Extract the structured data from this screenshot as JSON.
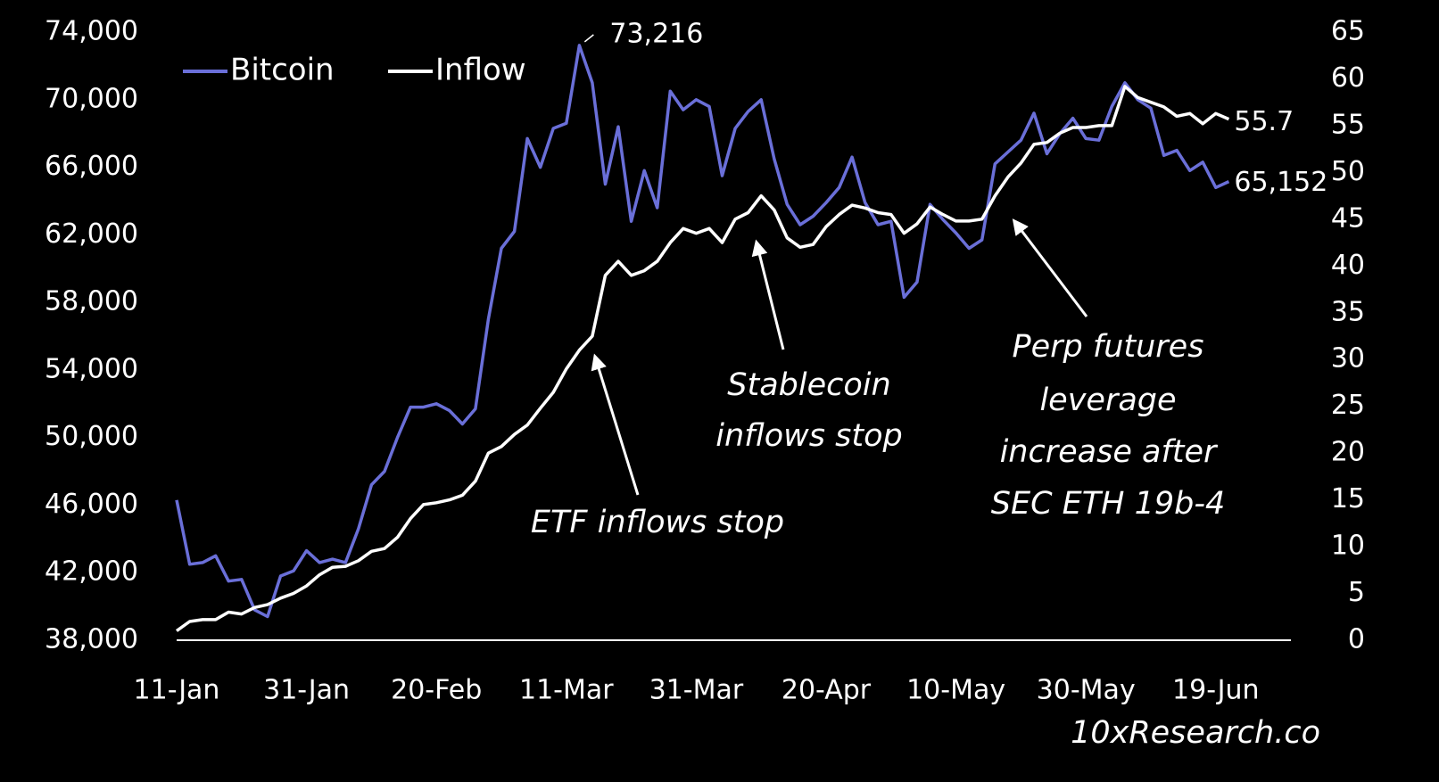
{
  "chart_data": {
    "type": "line",
    "categories": [
      "11-Jan",
      null,
      null,
      null,
      null,
      null,
      null,
      null,
      null,
      null,
      "31-Jan",
      null,
      null,
      null,
      null,
      null,
      null,
      null,
      null,
      null,
      "20-Feb",
      null,
      null,
      null,
      null,
      null,
      null,
      null,
      null,
      null,
      "11-Mar",
      null,
      null,
      null,
      null,
      null,
      null,
      null,
      null,
      null,
      "31-Mar",
      null,
      null,
      null,
      null,
      null,
      null,
      null,
      null,
      null,
      "20-Apr",
      null,
      null,
      null,
      null,
      null,
      null,
      null,
      null,
      null,
      "10-May",
      null,
      null,
      null,
      null,
      null,
      null,
      null,
      null,
      null,
      "30-May",
      null,
      null,
      null,
      null,
      null,
      null,
      null,
      null,
      null,
      "19-Jun",
      null
    ],
    "series": [
      {
        "name": "Bitcoin",
        "color": "#6a6fd8",
        "values": [
          46300,
          42500,
          42600,
          43000,
          41500,
          41600,
          39800,
          39400,
          41800,
          42100,
          43300,
          42600,
          42800,
          42600,
          44600,
          47200,
          48000,
          50000,
          51800,
          51800,
          52000,
          51600,
          50800,
          51700,
          57000,
          61200,
          62200,
          67700,
          66000,
          68300,
          68600,
          73216,
          71000,
          65000,
          68400,
          62800,
          65800,
          63600,
          70500,
          69400,
          70000,
          69600,
          65500,
          68300,
          69300,
          70000,
          66500,
          63800,
          62600,
          63100,
          63900,
          64800,
          66600,
          63900,
          62600,
          62800,
          58300,
          59200,
          63800,
          62900,
          62100,
          61200,
          61700,
          66200,
          66900,
          67600,
          69200,
          66800,
          68000,
          68900,
          67700,
          67600,
          69600,
          71000,
          70000,
          69500,
          66700,
          67000,
          65800,
          66300,
          64800,
          65152
        ],
        "value_labels": [
          null,
          null,
          null,
          null,
          null,
          null,
          null,
          null,
          null,
          null,
          null,
          null,
          null,
          null,
          null,
          null,
          null,
          null,
          null,
          null,
          null,
          null,
          null,
          null,
          null,
          null,
          null,
          null,
          null,
          null,
          null,
          "73,216",
          null,
          null,
          null,
          null,
          null,
          null,
          null,
          null,
          null,
          null,
          null,
          null,
          null,
          null,
          null,
          null,
          null,
          null,
          null,
          null,
          null,
          null,
          null,
          null,
          null,
          null,
          null,
          null,
          null,
          null,
          null,
          null,
          null,
          null,
          null,
          null,
          null,
          null,
          null,
          null,
          null,
          null,
          null,
          null,
          null,
          null,
          null,
          null,
          null,
          "65,152"
        ]
      },
      {
        "name": "Inflow",
        "color": "#ffffff",
        "axis": "y2",
        "values": [
          1,
          2,
          2.2,
          2.2,
          3,
          2.8,
          3.5,
          3.8,
          4.5,
          5,
          5.8,
          7,
          7.8,
          7.9,
          8.5,
          9.5,
          9.8,
          11,
          13,
          14.5,
          14.7,
          15,
          15.5,
          17,
          20,
          20.7,
          22,
          23,
          24.8,
          26.5,
          29,
          31,
          32.5,
          39,
          40.5,
          39,
          39.5,
          40.5,
          42.5,
          44,
          43.5,
          44,
          42.5,
          45,
          45.7,
          47.5,
          46,
          43,
          42,
          42.3,
          44.2,
          45.5,
          46.5,
          46.2,
          45.7,
          45.5,
          43.5,
          44.5,
          46.3,
          45.5,
          44.8,
          44.8,
          45,
          47.5,
          49.5,
          51,
          53,
          53.2,
          54.2,
          54.8,
          54.8,
          55,
          55,
          59.2,
          58,
          57.5,
          57,
          56,
          56.3,
          55.2,
          56.3,
          55.7
        ]
      }
    ],
    "ylim": [
      38000,
      74000
    ],
    "yticks": [
      {
        "value": 38000,
        "label": "38,000"
      },
      {
        "value": 42000,
        "label": "42,000"
      },
      {
        "value": 46000,
        "label": "46,000"
      },
      {
        "value": 50000,
        "label": "50,000"
      },
      {
        "value": 54000,
        "label": "54,000"
      },
      {
        "value": 58000,
        "label": "58,000"
      },
      {
        "value": 62000,
        "label": "62,000"
      },
      {
        "value": 66000,
        "label": "66,000"
      },
      {
        "value": 70000,
        "label": "70,000"
      },
      {
        "value": 74000,
        "label": "74,000"
      }
    ],
    "y2lim": [
      0,
      65
    ],
    "y2ticks": [
      0,
      5,
      10,
      15,
      20,
      25,
      30,
      35,
      40,
      45,
      50,
      55,
      60,
      65
    ],
    "legend": "top-left",
    "annotations": [
      {
        "lines": [
          "ETF inflows stop"
        ]
      },
      {
        "lines": [
          "Stablecoin",
          "inflows stop"
        ]
      },
      {
        "lines": [
          "Perp futures",
          "leverage",
          "increase after",
          "SEC ETH 19b-4"
        ]
      }
    ],
    "source": "10xResearch.co"
  }
}
